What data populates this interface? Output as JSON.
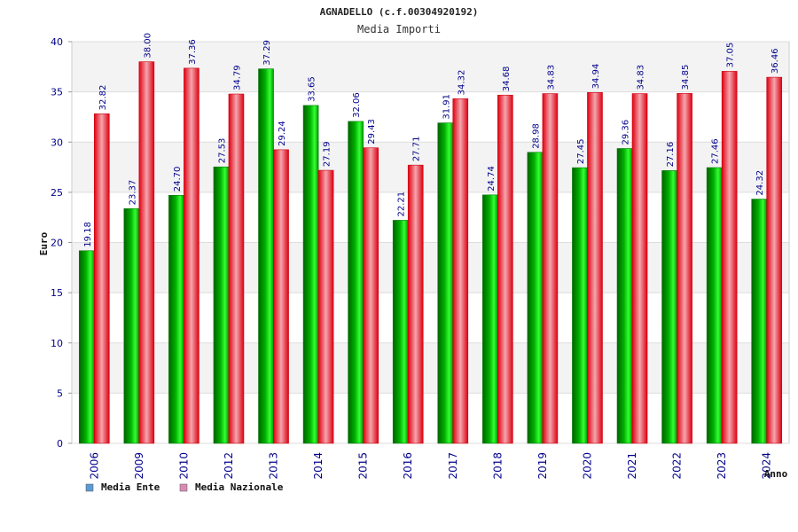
{
  "chart_data": {
    "type": "bar",
    "title": "AGNADELLO (c.f.00304920192)",
    "subtitle": "Media Importi",
    "xlabel": "Anno",
    "ylabel": "Euro",
    "ylim": [
      0,
      40
    ],
    "yticks": [
      0,
      5,
      10,
      15,
      20,
      25,
      30,
      35,
      40
    ],
    "grid": true,
    "legend_position": "bottom-left",
    "categories": [
      "2006",
      "2009",
      "2010",
      "2012",
      "2013",
      "2014",
      "2015",
      "2016",
      "2017",
      "2018",
      "2019",
      "2020",
      "2021",
      "2022",
      "2023",
      "2024"
    ],
    "series": [
      {
        "name": "Media Ente",
        "legend_color": "#5b9bd5",
        "color": "#00aa00",
        "values": [
          19.18,
          23.37,
          24.7,
          27.53,
          37.29,
          33.65,
          32.06,
          22.21,
          31.91,
          24.74,
          28.98,
          27.45,
          29.36,
          27.16,
          27.46,
          24.32
        ],
        "labels": [
          "19.18",
          "23.37",
          "24.70",
          "27.53",
          "37.29",
          "33.65",
          "32.06",
          "22.21",
          "31.91",
          "24.74",
          "28.98",
          "27.45",
          "29.36",
          "27.16",
          "27.46",
          "24.32"
        ]
      },
      {
        "name": "Media Nazionale",
        "legend_color": "#d98cb3",
        "color": "#dd0011",
        "values": [
          32.82,
          38.0,
          37.36,
          34.79,
          29.24,
          27.19,
          29.43,
          27.71,
          34.32,
          34.68,
          34.83,
          34.94,
          34.83,
          34.85,
          37.05,
          36.46
        ],
        "labels": [
          "32.82",
          "38.00",
          "37.36",
          "34.79",
          "29.24",
          "27.19",
          "29.43",
          "27.71",
          "34.32",
          "34.68",
          "34.83",
          "34.94",
          "34.83",
          "34.85",
          "37.05",
          "36.46"
        ]
      }
    ]
  }
}
